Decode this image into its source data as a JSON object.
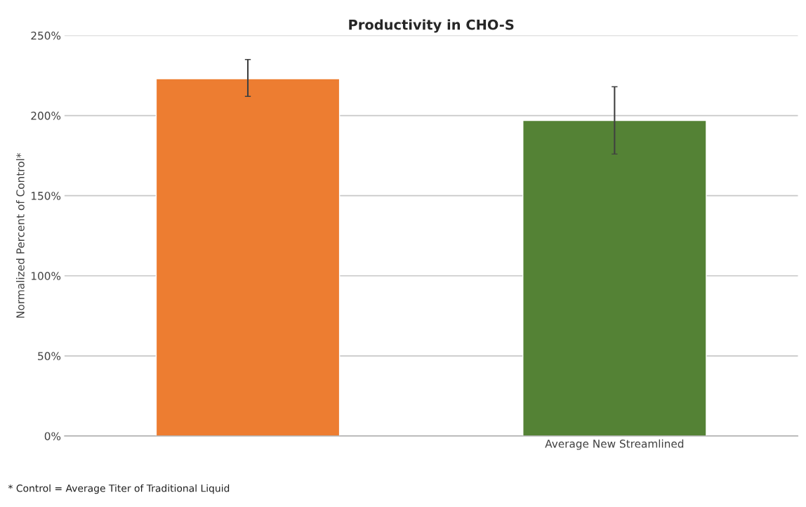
{
  "chart_data": {
    "type": "bar",
    "title": "Productivity in CHO-S",
    "ylabel": "Normalized Percent of Control*",
    "categories": [
      null,
      "Average New Streamlined"
    ],
    "values": [
      223,
      197
    ],
    "colors": [
      "#ed7d31",
      "#548235"
    ],
    "errors": [
      [
        212,
        235
      ],
      [
        176,
        218
      ]
    ],
    "ylim": [
      0,
      250
    ],
    "yticks": [
      {
        "value": 0,
        "label": "0%"
      },
      {
        "value": 50,
        "label": "50%"
      },
      {
        "value": 100,
        "label": "100%"
      },
      {
        "value": 150,
        "label": "150%"
      },
      {
        "value": 200,
        "label": "200%"
      },
      {
        "value": 250,
        "label": "250%"
      }
    ],
    "grid": "y",
    "annotations": [
      "* Control = Average Titer of Traditional Liquid"
    ]
  }
}
